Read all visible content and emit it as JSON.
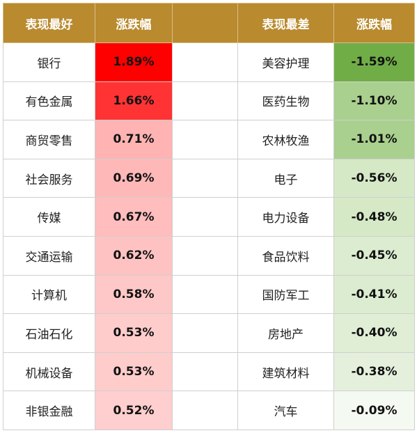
{
  "headers": {
    "best_label": "表现最好",
    "best_change": "涨跌幅",
    "worst_label": "表现最差",
    "worst_change": "涨跌幅"
  },
  "rows": [
    {
      "best": "银行",
      "best_pct": "1.89%",
      "best_color": "#ff0000",
      "worst": "美容护理",
      "worst_pct": "-1.59%",
      "worst_color": "#70ad47"
    },
    {
      "best": "有色金属",
      "best_pct": "1.66%",
      "best_color": "#ff3333",
      "worst": "医药生物",
      "worst_pct": "-1.10%",
      "worst_color": "#a9d08e"
    },
    {
      "best": "商贸零售",
      "best_pct": "0.71%",
      "best_color": "#ffb3b3",
      "worst": "农林牧渔",
      "worst_pct": "-1.01%",
      "worst_color": "#a9d08e"
    },
    {
      "best": "社会服务",
      "best_pct": "0.69%",
      "best_color": "#ffb8b8",
      "worst": "电子",
      "worst_pct": "-0.56%",
      "worst_color": "#d6e9c6"
    },
    {
      "best": "传媒",
      "best_pct": "0.67%",
      "best_color": "#ffbdbd",
      "worst": "电力设备",
      "worst_pct": "-0.48%",
      "worst_color": "#d6e9c6"
    },
    {
      "best": "交通运输",
      "best_pct": "0.62%",
      "best_color": "#ffc2c2",
      "worst": "食品饮料",
      "worst_pct": "-0.45%",
      "worst_color": "#dcecd0"
    },
    {
      "best": "计算机",
      "best_pct": "0.58%",
      "best_color": "#ffc8c8",
      "worst": "国防军工",
      "worst_pct": "-0.41%",
      "worst_color": "#dcecd0"
    },
    {
      "best": "石油石化",
      "best_pct": "0.53%",
      "best_color": "#ffcccc",
      "worst": "房地产",
      "worst_pct": "-0.40%",
      "worst_color": "#e0eed6"
    },
    {
      "best": "机械设备",
      "best_pct": "0.53%",
      "best_color": "#ffcccc",
      "worst": "建筑材料",
      "worst_pct": "-0.38%",
      "worst_color": "#e4f0dc"
    },
    {
      "best": "非银金融",
      "best_pct": "0.52%",
      "best_color": "#ffcece",
      "worst": "汽车",
      "worst_pct": "-0.09%",
      "worst_color": "#f4f9f1"
    }
  ]
}
